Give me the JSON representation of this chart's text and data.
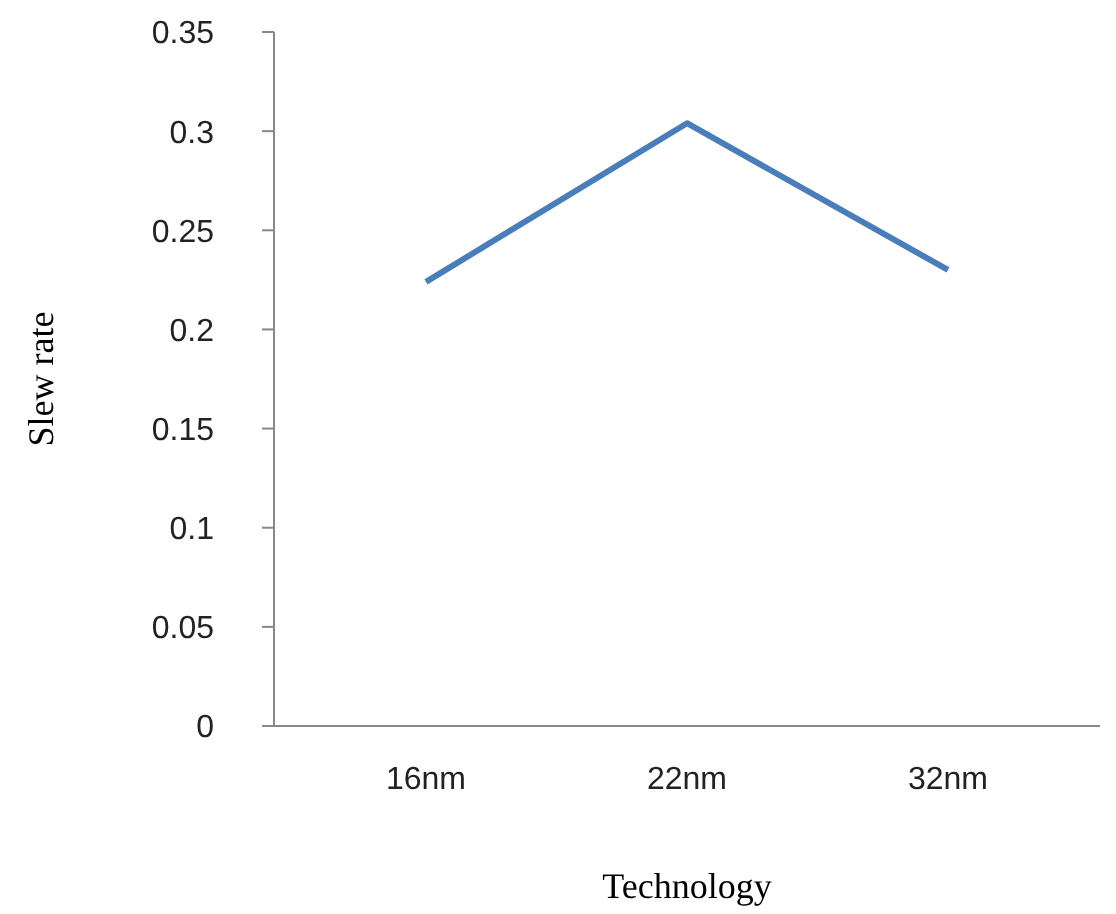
{
  "chart_data": {
    "type": "line",
    "xlabel": "Technology",
    "ylabel": "Slew rate",
    "categories": [
      "16nm",
      "22nm",
      "32nm"
    ],
    "series": [
      {
        "color": "#4a7ebb",
        "values": [
          0.224,
          0.304,
          0.23
        ]
      }
    ],
    "ylim": [
      0,
      0.35
    ],
    "yticks": [
      0,
      0.05,
      0.1,
      0.15,
      0.2,
      0.25,
      0.3,
      0.35
    ],
    "grid": false,
    "legend": false,
    "marker": "none",
    "line_style": "solid"
  }
}
